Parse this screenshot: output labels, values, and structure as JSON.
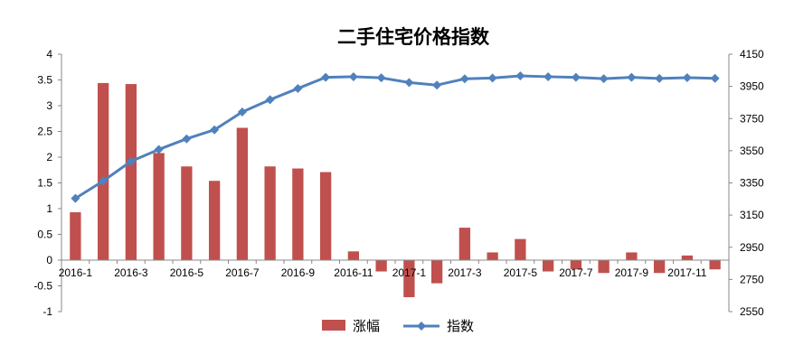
{
  "chart_data": {
    "type": "bar",
    "title": "二手住宅价格指数",
    "categories": [
      "2016-1",
      "2016-2",
      "2016-3",
      "2016-4",
      "2016-5",
      "2016-6",
      "2016-7",
      "2016-8",
      "2016-9",
      "2016-10",
      "2016-11",
      "2016-12",
      "2017-1",
      "2017-2",
      "2017-3",
      "2017-4",
      "2017-5",
      "2017-6",
      "2017-7",
      "2017-8",
      "2017-9",
      "2017-10",
      "2017-11",
      "2017-12"
    ],
    "x_tick_labels": [
      "2016-1",
      "2016-3",
      "2016-5",
      "2016-7",
      "2016-9",
      "2016-11",
      "2017-1",
      "2017-3",
      "2017-5",
      "2017-7",
      "2017-9",
      "2017-11"
    ],
    "series": [
      {
        "name": "涨幅",
        "type": "bar",
        "axis": "left",
        "color": "#C0504D",
        "values": [
          0.93,
          3.44,
          3.42,
          2.08,
          1.82,
          1.54,
          2.57,
          1.82,
          1.78,
          1.71,
          0.17,
          -0.22,
          -0.72,
          -0.45,
          0.63,
          0.15,
          0.41,
          -0.22,
          -0.18,
          -0.25,
          0.15,
          -0.25,
          0.09,
          -0.18
        ]
      },
      {
        "name": "指数",
        "type": "line",
        "axis": "right",
        "color": "#4F81BD",
        "values": [
          3254,
          3362,
          3484,
          3558,
          3624,
          3680,
          3791,
          3867,
          3937,
          4006,
          4010,
          4003,
          3974,
          3958,
          3997,
          4002,
          4015,
          4010,
          4006,
          3998,
          4006,
          3999,
          4004,
          4000
        ]
      }
    ],
    "y_left": {
      "ylim": [
        -1,
        4
      ],
      "ticks": [
        "-1",
        "-0.5",
        "0",
        "0.5",
        "1",
        "1.5",
        "2",
        "2.5",
        "3",
        "3.5",
        "4"
      ]
    },
    "y_right": {
      "ylim": [
        2550,
        4150
      ],
      "ticks": [
        "2550",
        "2750",
        "2950",
        "3150",
        "3350",
        "3550",
        "3750",
        "3950",
        "4150"
      ]
    },
    "grid": false,
    "legend_position": "bottom"
  }
}
